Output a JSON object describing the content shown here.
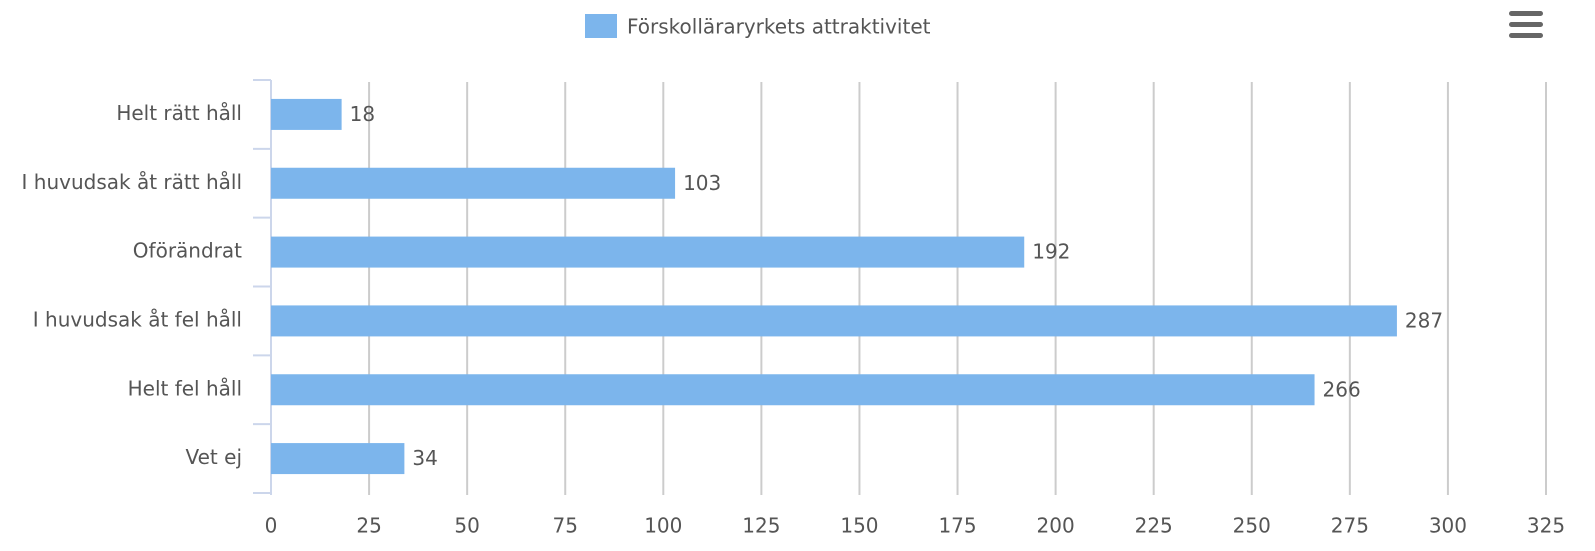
{
  "chart_data": {
    "type": "bar",
    "categories": [
      "Helt rätt håll",
      "I huvudsak åt rätt håll",
      "Oförändrat",
      "I huvudsak åt fel håll",
      "Helt fel håll",
      "Vet ej"
    ],
    "series": [
      {
        "name": "Förskolläraryrkets attraktivitet",
        "color": "#7cb5ec",
        "values": [
          18,
          103,
          192,
          287,
          266,
          34
        ]
      }
    ],
    "xlim": [
      0,
      325
    ],
    "xticks": [
      0,
      25,
      50,
      75,
      100,
      125,
      150,
      175,
      200,
      225,
      250,
      275,
      300,
      325
    ],
    "grid": true,
    "legend": "top"
  }
}
